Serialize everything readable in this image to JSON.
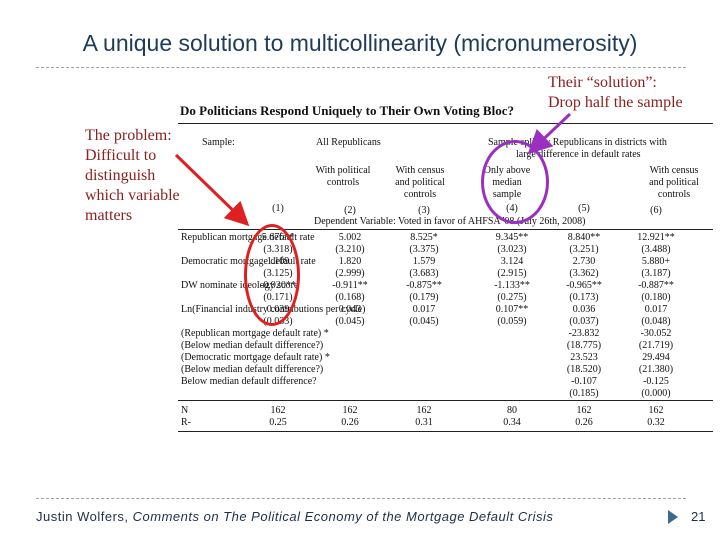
{
  "slide": {
    "title": "A unique solution to multicollinearity (micronumerosity)",
    "page_number": "21",
    "footer_author": "Justin Wolfers, ",
    "footer_title": "Comments on The Political Economy of the Mortgage Default Crisis"
  },
  "annotations": {
    "problem_lines": [
      "The problem:",
      "Difficult to",
      "distinguish",
      "which variable",
      "matters"
    ],
    "solution_lines": [
      "Their “solution”:",
      "Drop half the sample"
    ]
  },
  "table": {
    "title": "Do Politicians Respond Uniquely to Their Own Voting Bloc?",
    "sample_label": "Sample:",
    "all_republicans": "All Republicans",
    "split_header_1": "Sample split by Republicans in districts with",
    "split_header_2": "large difference in default rates",
    "col_subheads": [
      "",
      "With political controls",
      "With census and political controls",
      "Only above median sample",
      "",
      "With census and political controls"
    ],
    "col_numbers": [
      "(1)",
      "(2)",
      "(3)",
      "(4)",
      "(5)",
      "(6)"
    ],
    "dep_var": "Dependent Variable: Voted in favor of AHFSA '08 (July 26th, 2008)",
    "rows": [
      {
        "label": "Republican mortgage default rate",
        "values": [
          "5.676**",
          "5.002",
          "8.525*",
          "9.345**",
          "8.840**",
          "12.921**"
        ]
      },
      {
        "label": "",
        "values": [
          "(3.318)",
          "(3.210)",
          "(3.375)",
          "(3.023)",
          "(3.251)",
          "(3.488)"
        ]
      },
      {
        "label": "Democratic mortgage default rate",
        "values": [
          "1.109",
          "1.820",
          "1.579",
          "3.124",
          "2.730",
          "5.880+"
        ]
      },
      {
        "label": "",
        "values": [
          "(3.125)",
          "(2.999)",
          "(3.683)",
          "(2.915)",
          "(3.362)",
          "(3.187)"
        ]
      },
      {
        "label": "DW nominate ideology score",
        "values": [
          "-0.920**",
          "-0.911**",
          "-0.875**",
          "-1.133**",
          "-0.965**",
          "-0.887**"
        ]
      },
      {
        "label": "",
        "values": [
          "(0.171)",
          "(0.168)",
          "(0.179)",
          "(0.275)",
          "(0.173)",
          "(0.180)"
        ]
      },
      {
        "label": "Ln(Financial industry contributions per cycle)",
        "values": [
          "0.039",
          "0.043",
          "0.017",
          "0.107**",
          "0.036",
          "0.017"
        ]
      },
      {
        "label": "",
        "values": [
          "(0.033)",
          "(0.045)",
          "(0.045)",
          "(0.059)",
          "(0.037)",
          "(0.048)"
        ]
      },
      {
        "label": "(Republican mortgage default rate) *",
        "values": [
          "",
          "",
          "",
          "",
          "-23.832",
          "-30.052"
        ]
      },
      {
        "label": "(Below median default difference?)",
        "values": [
          "",
          "",
          "",
          "",
          "(18.775)",
          "(21.719)"
        ]
      },
      {
        "label": "(Democratic mortgage default rate) *",
        "values": [
          "",
          "",
          "",
          "",
          "23.523",
          "29.494"
        ]
      },
      {
        "label": "(Below median default difference?)",
        "values": [
          "",
          "",
          "",
          "",
          "(18.520)",
          "(21.380)"
        ]
      },
      {
        "label": "Below median default difference?",
        "values": [
          "",
          "",
          "",
          "",
          "-0.107",
          "-0.125"
        ]
      },
      {
        "label": "",
        "values": [
          "",
          "",
          "",
          "",
          "(0.185)",
          "(0.000)"
        ]
      }
    ],
    "footer_rows": [
      {
        "label": "N",
        "values": [
          "162",
          "162",
          "162",
          "80",
          "162",
          "162"
        ]
      },
      {
        "label": "R-",
        "values": [
          "0.25",
          "0.26",
          "0.31",
          "0.34",
          "0.26",
          "0.32"
        ]
      }
    ]
  }
}
